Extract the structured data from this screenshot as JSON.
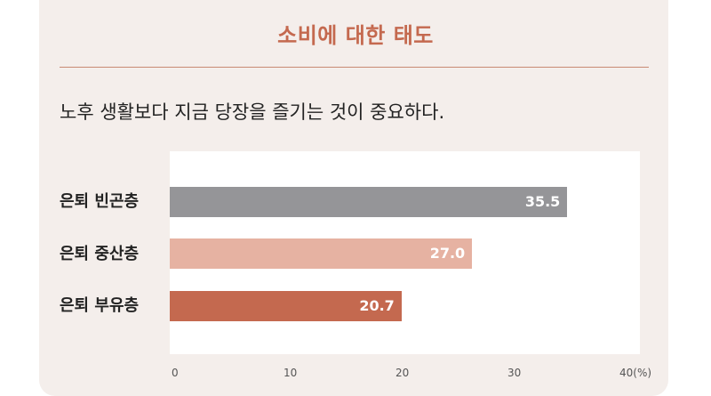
{
  "title": "소비에 대한 태도",
  "question": "노후 생활보다 지금 당장을 즐기는 것이 중요하다.",
  "colors": {
    "title": "#c4694f",
    "poor": "#959598",
    "middle": "#e6b2a2",
    "rich": "#c4694f"
  },
  "chart_data": {
    "type": "bar",
    "orientation": "horizontal",
    "categories": [
      "은퇴 빈곤층",
      "은퇴 중산층",
      "은퇴 부유층"
    ],
    "values": [
      35.5,
      27.0,
      20.7
    ],
    "value_labels": [
      "35.5",
      "27.0",
      "20.7"
    ],
    "xlim": [
      0,
      40
    ],
    "ticks": [
      "0",
      "10",
      "20",
      "30",
      "40(%)"
    ],
    "bar_colors": [
      "#959598",
      "#e6b2a2",
      "#c4694f"
    ]
  }
}
